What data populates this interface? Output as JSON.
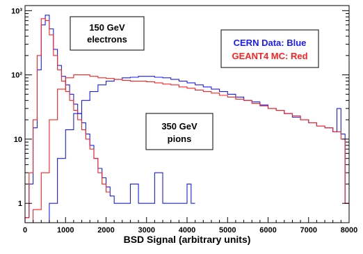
{
  "chart_data": {
    "type": "line",
    "title": "",
    "xlabel": "BSD Signal (arbitrary units)",
    "ylabel": "",
    "xlim": [
      0,
      8000
    ],
    "ylim": [
      0.5,
      1200
    ],
    "yscale": "log",
    "grid": false,
    "x_ticks": [
      0,
      1000,
      2000,
      3000,
      4000,
      5000,
      6000,
      7000,
      8000
    ],
    "x_tick_labels": [
      "0",
      "1000",
      "2000",
      "3000",
      "4000",
      "5000",
      "6000",
      "7000",
      "8000"
    ],
    "y_ticks": [
      1,
      10,
      100,
      1000
    ],
    "y_tick_labels": [
      "1",
      "10",
      "10²",
      "10³"
    ],
    "legend": {
      "placement": "top-right",
      "entries": [
        {
          "label": "CERN Data: Blue",
          "color": "#1a1aff"
        },
        {
          "label": "GEANT4 MC: Red",
          "color": "#ff2020"
        }
      ]
    },
    "annotations": [
      {
        "text_lines": [
          "150 GeV",
          "electrons"
        ],
        "placement": "top-left"
      },
      {
        "text_lines": [
          "350 GeV",
          "pions"
        ],
        "placement": "center"
      }
    ],
    "series": [
      {
        "name": "CERN Data",
        "role": "electrons",
        "color": "#1a1aff",
        "x": [
          0,
          100,
          200,
          300,
          400,
          500,
          600,
          700,
          800,
          900,
          1000,
          1100,
          1200,
          1300,
          1400,
          1500,
          1600,
          1700,
          1800,
          1900,
          2000,
          2100,
          2200,
          2400,
          2600,
          2800,
          3000,
          3200,
          3400,
          3600,
          3800,
          4000,
          4100
        ],
        "y": [
          0.6,
          2,
          15,
          120,
          600,
          850,
          520,
          250,
          140,
          95,
          70,
          50,
          35,
          25,
          18,
          12,
          8,
          5,
          3.5,
          2.5,
          1.8,
          1.3,
          1,
          1,
          2,
          1,
          1,
          3,
          1,
          1,
          1,
          2,
          1
        ]
      },
      {
        "name": "GEANT4 MC",
        "role": "electrons",
        "color": "#ff2020",
        "x": [
          0,
          100,
          200,
          300,
          400,
          500,
          600,
          700,
          800,
          900,
          1000,
          1100,
          1200,
          1300,
          1400,
          1500,
          1600,
          1700,
          1800,
          1900,
          2000
        ],
        "y": [
          0.6,
          3,
          20,
          200,
          750,
          700,
          420,
          200,
          120,
          80,
          55,
          40,
          28,
          20,
          14,
          10,
          7,
          5,
          3,
          2,
          1.5
        ]
      },
      {
        "name": "CERN Data",
        "role": "pions",
        "color": "#1a1aff",
        "x": [
          600,
          800,
          1000,
          1200,
          1400,
          1600,
          1800,
          2000,
          2200,
          2400,
          2600,
          2800,
          3000,
          3200,
          3400,
          3600,
          3800,
          4000,
          4200,
          4400,
          4600,
          4800,
          5000,
          5200,
          5400,
          5600,
          5800,
          6000,
          6200,
          6400,
          6600,
          6800,
          7000,
          7200,
          7400,
          7600,
          7700,
          7800,
          7900
        ],
        "y": [
          1,
          5,
          14,
          25,
          40,
          55,
          70,
          80,
          85,
          90,
          92,
          95,
          95,
          92,
          90,
          85,
          80,
          75,
          70,
          65,
          60,
          55,
          50,
          45,
          40,
          38,
          34,
          30,
          28,
          25,
          22,
          20,
          18,
          16,
          15,
          13,
          30,
          12,
          1
        ]
      },
      {
        "name": "GEANT4 MC",
        "role": "pions",
        "color": "#ff2020",
        "x": [
          200,
          400,
          600,
          800,
          1000,
          1200,
          1400,
          1600,
          1800,
          2000,
          2200,
          2400,
          2600,
          2800,
          3000,
          3200,
          3400,
          3600,
          3800,
          4000,
          4200,
          4400,
          4600,
          4800,
          5000,
          5200,
          5400,
          5600,
          5800,
          6000,
          6200,
          6400,
          6600,
          6800,
          7000,
          7200,
          7400,
          7600,
          7800,
          7900
        ],
        "y": [
          0.8,
          3,
          20,
          60,
          90,
          100,
          100,
          95,
          90,
          88,
          85,
          82,
          80,
          80,
          78,
          75,
          72,
          70,
          65,
          62,
          58,
          55,
          52,
          48,
          45,
          42,
          40,
          36,
          33,
          30,
          28,
          25,
          23,
          20,
          18,
          16,
          15,
          13,
          10,
          1
        ]
      }
    ]
  }
}
